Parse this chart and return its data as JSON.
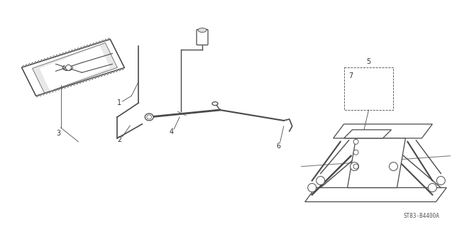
{
  "bg_color": "#ffffff",
  "line_color": "#4a4a4a",
  "text_color": "#333333",
  "diagram_code": "ST83-B4400A",
  "label_fs": 7,
  "lw": 0.9
}
